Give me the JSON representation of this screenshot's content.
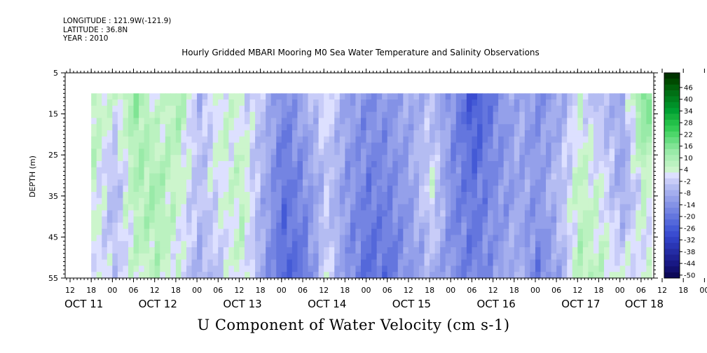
{
  "meta": {
    "longitude": "LONGITUDE : 121.9W(-121.9)",
    "latitude": "LATITUDE : 36.8N",
    "year": "YEAR : 2010"
  },
  "chart_data": {
    "type": "heatmap",
    "title": "Hourly Gridded MBARI Mooring M0 Sea Water Temperature and Salinity Observations",
    "xlabel": "U Component of Water Velocity (cm s-1)",
    "ylabel": "DEPTH (m)",
    "y_ticks": [
      5,
      15,
      25,
      35,
      45,
      55
    ],
    "y_range": [
      5,
      55
    ],
    "y_reversed": true,
    "data_depth_range": [
      10,
      55
    ],
    "x_hour_ticks": [
      "12",
      "18",
      "00",
      "06",
      "12",
      "18",
      "00",
      "06",
      "12",
      "18",
      "00",
      "06",
      "12",
      "18",
      "00",
      "06",
      "12",
      "18",
      "00",
      "06",
      "12",
      "18",
      "00",
      "06",
      "12",
      "18",
      "00",
      "06",
      "12",
      "18",
      "00",
      "06"
    ],
    "x_date_labels": [
      "OCT 11",
      "OCT 12",
      "OCT 13",
      "OCT 14",
      "OCT 15",
      "OCT 16",
      "OCT 17",
      "OCT 18"
    ],
    "colorbar": {
      "labels": [
        "46",
        "40",
        "34",
        "28",
        "22",
        "16",
        "10",
        "4",
        "-2",
        "-8",
        "-14",
        "-20",
        "-26",
        "-32",
        "-38",
        "-44",
        "-50"
      ],
      "levels_top_to_bottom": [
        52,
        49,
        46,
        43,
        40,
        37,
        34,
        31,
        28,
        25,
        22,
        19,
        16,
        13,
        10,
        7,
        4,
        1,
        -2,
        -5,
        -8,
        -11,
        -14,
        -17,
        -20,
        -23,
        -26,
        -29,
        -32,
        -35,
        -38,
        -41,
        -44,
        -47,
        -50
      ],
      "colors_top_to_bottom": [
        "#003300",
        "#004a00",
        "#005f0a",
        "#007015",
        "#00801e",
        "#009028",
        "#00a032",
        "#14b03c",
        "#22c048",
        "#33cc55",
        "#4dd66a",
        "#66dd80",
        "#80e494",
        "#99eaa8",
        "#aaeeb4",
        "#bbf2c0",
        "#ccf5cc",
        "#dde0ff",
        "#c8ccf8",
        "#b4bcf2",
        "#a4aeee",
        "#94a0ea",
        "#8492e6",
        "#7484e2",
        "#6476de",
        "#5468da",
        "#445ad6",
        "#3a4cd0",
        "#3040c4",
        "#2a36b4",
        "#242ca4",
        "#1e2294",
        "#181884",
        "#121070",
        "#0c0858"
      ]
    },
    "velocity_series": [
      {
        "time": "Oct 11 18:00",
        "surface": 8,
        "mid": 4,
        "bottom": 2
      },
      {
        "time": "Oct 12 00:00",
        "surface": 2,
        "mid": -6,
        "bottom": -2
      },
      {
        "time": "Oct 12 06:00",
        "surface": 12,
        "mid": 8,
        "bottom": 4
      },
      {
        "time": "Oct 12 12:00",
        "surface": 2,
        "mid": 10,
        "bottom": 6
      },
      {
        "time": "Oct 12 18:00",
        "surface": 10,
        "mid": 4,
        "bottom": 2
      },
      {
        "time": "Oct 13 00:00",
        "surface": -6,
        "mid": -4,
        "bottom": -8
      },
      {
        "time": "Oct 13 06:00",
        "surface": 4,
        "mid": 2,
        "bottom": -2
      },
      {
        "time": "Oct 13 12:00",
        "surface": 2,
        "mid": 6,
        "bottom": 4
      },
      {
        "time": "Oct 13 18:00",
        "surface": -4,
        "mid": -8,
        "bottom": -10
      },
      {
        "time": "Oct 14 00:00",
        "surface": -16,
        "mid": -20,
        "bottom": -24
      },
      {
        "time": "Oct 14 06:00",
        "surface": -8,
        "mid": -14,
        "bottom": -20
      },
      {
        "time": "Oct 14 12:00",
        "surface": 2,
        "mid": -4,
        "bottom": 2
      },
      {
        "time": "Oct 14 18:00",
        "surface": -10,
        "mid": -12,
        "bottom": -14
      },
      {
        "time": "Oct 15 00:00",
        "surface": -14,
        "mid": -18,
        "bottom": -22
      },
      {
        "time": "Oct 15 06:00",
        "surface": -12,
        "mid": -16,
        "bottom": -20
      },
      {
        "time": "Oct 15 12:00",
        "surface": -8,
        "mid": -10,
        "bottom": -12
      },
      {
        "time": "Oct 15 18:00",
        "surface": -6,
        "mid": 2,
        "bottom": -8
      },
      {
        "time": "Oct 16 00:00",
        "surface": -14,
        "mid": -16,
        "bottom": -14
      },
      {
        "time": "Oct 16 06:00",
        "surface": -28,
        "mid": -20,
        "bottom": -18
      },
      {
        "time": "Oct 16 12:00",
        "surface": -16,
        "mid": -14,
        "bottom": -12
      },
      {
        "time": "Oct 16 18:00",
        "surface": -8,
        "mid": -10,
        "bottom": -6
      },
      {
        "time": "Oct 17 00:00",
        "surface": -14,
        "mid": -12,
        "bottom": -18
      },
      {
        "time": "Oct 17 06:00",
        "surface": -10,
        "mid": -4,
        "bottom": -10
      },
      {
        "time": "Oct 17 12:00",
        "surface": 2,
        "mid": 6,
        "bottom": 8
      },
      {
        "time": "Oct 17 18:00",
        "surface": -6,
        "mid": 2,
        "bottom": 6
      },
      {
        "time": "Oct 18 00:00",
        "surface": -8,
        "mid": -10,
        "bottom": 2
      },
      {
        "time": "Oct 18 06:00",
        "surface": 18,
        "mid": 4,
        "bottom": 2
      },
      {
        "time": "Oct 18 09:00",
        "surface": 10,
        "mid": 2,
        "bottom": -2
      }
    ]
  }
}
